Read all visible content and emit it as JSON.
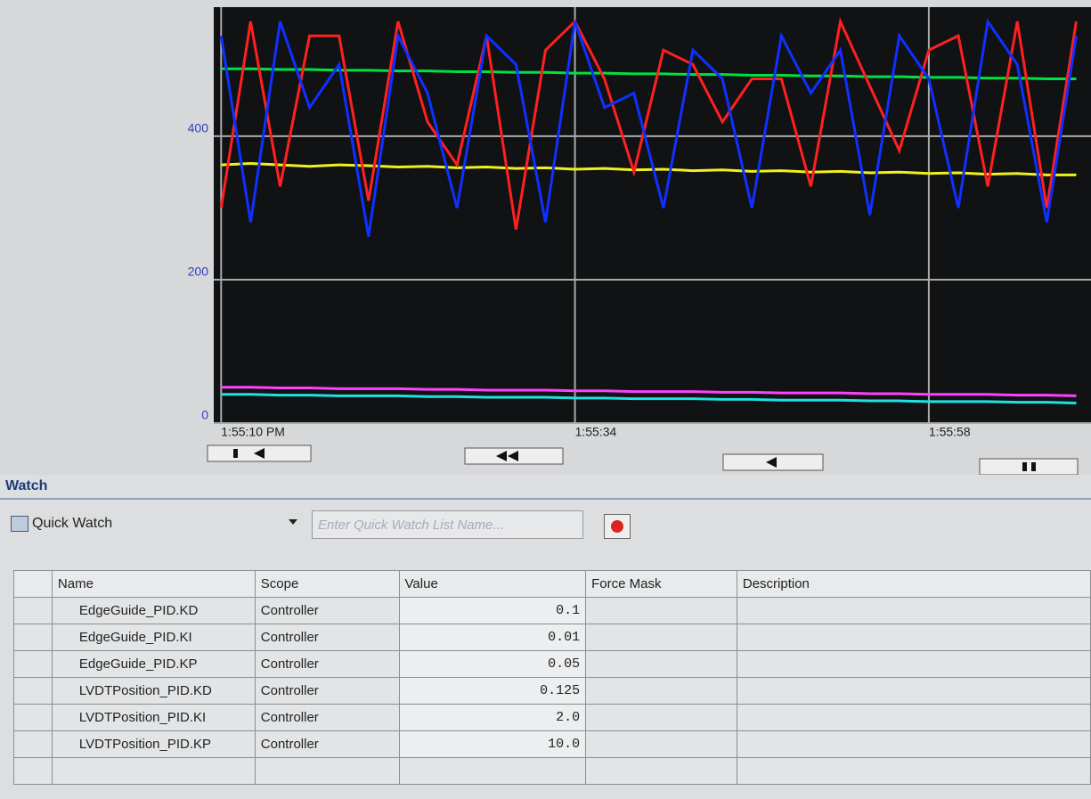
{
  "chart_data": {
    "type": "line",
    "x": [
      0,
      2,
      4,
      6,
      8,
      10,
      12,
      14,
      16,
      18,
      20,
      22,
      24,
      26,
      28,
      30,
      32,
      34,
      36,
      38,
      40,
      42,
      44,
      46,
      48,
      50,
      52,
      54,
      56,
      58
    ],
    "xlim": [
      -0.5,
      59
    ],
    "xticks": [
      {
        "value": 0,
        "label": "1:55:10 PM"
      },
      {
        "value": 24,
        "label": "1:55:34"
      },
      {
        "value": 48,
        "label": "1:55:58"
      }
    ],
    "ylim": [
      0,
      580
    ],
    "yticks": [
      0,
      200,
      400
    ],
    "grid": true,
    "series": [
      {
        "color": "#00e040",
        "values": [
          494,
          494,
          493,
          493,
          492,
          492,
          491,
          491,
          490,
          490,
          489,
          489,
          488,
          488,
          487,
          487,
          486,
          486,
          485,
          485,
          484,
          484,
          483,
          483,
          482,
          482,
          481,
          481,
          480,
          480
        ]
      },
      {
        "color": "#f0f020",
        "values": [
          360,
          362,
          360,
          358,
          360,
          359,
          357,
          358,
          356,
          357,
          355,
          356,
          354,
          355,
          353,
          354,
          352,
          353,
          351,
          352,
          350,
          351,
          349,
          350,
          348,
          349,
          347,
          348,
          346,
          346
        ]
      },
      {
        "color": "#ff40ff",
        "values": [
          50,
          50,
          49,
          49,
          48,
          48,
          48,
          47,
          47,
          46,
          46,
          46,
          45,
          45,
          44,
          44,
          44,
          43,
          43,
          42,
          42,
          42,
          41,
          41,
          40,
          40,
          40,
          39,
          39,
          38
        ]
      },
      {
        "color": "#20e0e0",
        "values": [
          40,
          40,
          39,
          39,
          38,
          38,
          38,
          37,
          37,
          36,
          36,
          36,
          35,
          35,
          34,
          34,
          34,
          33,
          33,
          32,
          32,
          32,
          31,
          31,
          30,
          30,
          30,
          29,
          29,
          28
        ]
      },
      {
        "color": "#ff2020",
        "values": [
          300,
          560,
          330,
          540,
          540,
          310,
          560,
          420,
          360,
          540,
          270,
          520,
          560,
          480,
          350,
          520,
          500,
          420,
          480,
          480,
          330,
          560,
          470,
          380,
          520,
          540,
          330,
          560,
          300,
          560
        ]
      },
      {
        "color": "#1030ff",
        "values": [
          540,
          280,
          560,
          440,
          500,
          260,
          540,
          460,
          300,
          540,
          500,
          280,
          560,
          440,
          460,
          300,
          520,
          480,
          300,
          540,
          460,
          520,
          290,
          540,
          480,
          300,
          560,
          500,
          280,
          540
        ]
      }
    ]
  },
  "watch": {
    "title": "Watch",
    "list": "Quick Watch",
    "placeholder": "Enter Quick Watch List Name...",
    "columns": [
      "Name",
      "Scope",
      "Value",
      "Force Mask",
      "Description"
    ],
    "rows": [
      [
        "EdgeGuide_PID.KD",
        "Controller",
        "0.1"
      ],
      [
        "EdgeGuide_PID.KI",
        "Controller",
        "0.01"
      ],
      [
        "EdgeGuide_PID.KP",
        "Controller",
        "0.05"
      ],
      [
        "LVDTPosition_PID.KD",
        "Controller",
        "0.125"
      ],
      [
        "LVDTPosition_PID.KI",
        "Controller",
        "2.0"
      ],
      [
        "LVDTPosition_PID.KP",
        "Controller",
        "10.0"
      ]
    ]
  }
}
